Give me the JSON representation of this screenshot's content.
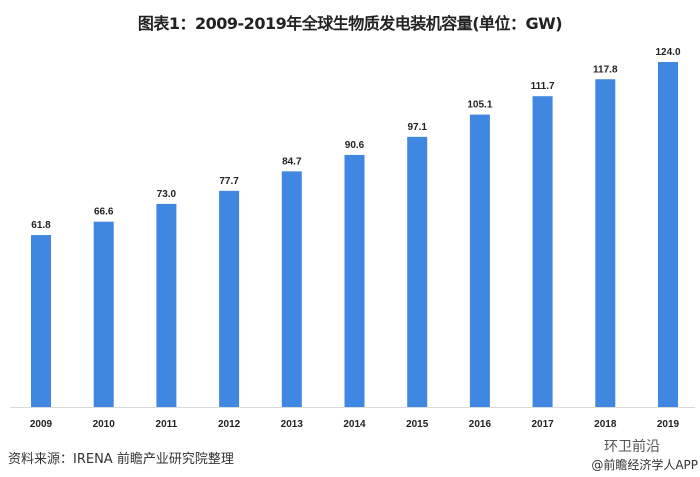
{
  "chart_data": {
    "type": "bar",
    "title": "图表1：2009-2019年全球生物质发电装机容量(单位：GW)",
    "categories": [
      "2009",
      "2010",
      "2011",
      "2012",
      "2013",
      "2014",
      "2015",
      "2016",
      "2017",
      "2018",
      "2019"
    ],
    "values": [
      61.8,
      66.6,
      73.0,
      77.7,
      84.7,
      90.6,
      97.1,
      105.1,
      111.7,
      117.8,
      124.0
    ],
    "data_labels": [
      "61.8",
      "66.6",
      "73.0",
      "77.7",
      "84.7",
      "90.6",
      "97.1",
      "105.1",
      "111.7",
      "117.8",
      "124.0"
    ],
    "xlabel": "",
    "ylabel": "",
    "ylim": [
      0,
      124
    ],
    "grid": false,
    "bar_color": "#3f87e0"
  },
  "footer": {
    "source": "资料来源：IRENA 前瞻产业研究院整理",
    "watermark_account": "环卫前沿",
    "watermark_app": "@前瞻经济学人APP"
  }
}
